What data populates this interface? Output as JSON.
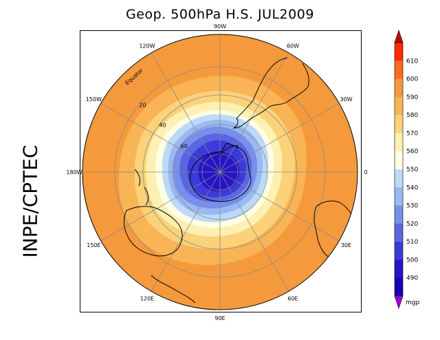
{
  "title": "Geop. 500hPa H.S. JUL2009",
  "side_label": "INPE/CPTEC",
  "map": {
    "longitude_labels": [
      {
        "text": "90W",
        "angle": -90
      },
      {
        "text": "60W",
        "angle": -60
      },
      {
        "text": "30W",
        "angle": -30
      },
      {
        "text": "0",
        "angle": 0
      },
      {
        "text": "30E",
        "angle": 30
      },
      {
        "text": "60E",
        "angle": 60
      },
      {
        "text": "90E",
        "angle": 90
      },
      {
        "text": "120E",
        "angle": 120
      },
      {
        "text": "150E",
        "angle": 150
      },
      {
        "text": "180W",
        "angle": 180
      },
      {
        "text": "150W",
        "angle": 210
      },
      {
        "text": "120W",
        "angle": 240
      }
    ],
    "latitude_labels": [
      "Equator",
      "20",
      "40",
      "60"
    ],
    "contour_levels": [
      490,
      500,
      510,
      520,
      530,
      540,
      550,
      560,
      570,
      580,
      590,
      600,
      610
    ]
  },
  "colorbar": {
    "unit": "mgp",
    "ticks": [
      "610",
      "600",
      "590",
      "580",
      "570",
      "560",
      "550",
      "540",
      "530",
      "520",
      "510",
      "500",
      "490"
    ],
    "colors": [
      "#ff2a00",
      "#ff6a1a",
      "#f59a3c",
      "#f8b455",
      "#fbd27a",
      "#fdf0b2",
      "#ffffe4",
      "#bcdaf8",
      "#9bb8f2",
      "#7890ec",
      "#5a66e0",
      "#3c3ad8",
      "#2614c8",
      "#1a00b4"
    ],
    "top_arrow_color": "#c80000",
    "bottom_arrow_color": "#a000e0"
  }
}
